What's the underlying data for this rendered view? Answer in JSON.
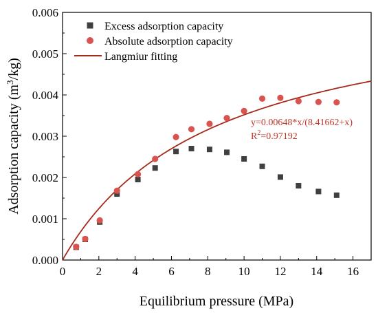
{
  "chart_data": {
    "type": "scatter",
    "xlabel": "Equilibrium pressure (MPa)",
    "ylabel_main": "Adsorption capacity (m",
    "ylabel_sup": "3",
    "ylabel_tail": "/kg)",
    "xlim": [
      0,
      17
    ],
    "ylim": [
      0,
      0.006
    ],
    "x_ticks": [
      0,
      2,
      4,
      6,
      8,
      10,
      12,
      14,
      16
    ],
    "y_ticks": [
      0.0,
      0.001,
      0.002,
      0.003,
      0.004,
      0.005,
      0.006
    ],
    "y_tick_labels": [
      "0.000",
      "0.001",
      "0.002",
      "0.003",
      "0.004",
      "0.005",
      "0.006"
    ],
    "x_tick_labels": [
      "0",
      "2",
      "4",
      "6",
      "8",
      "10",
      "12",
      "14",
      "16"
    ],
    "grid": false,
    "legend_position": "top-left",
    "series": [
      {
        "name": "Excess adsorption capacity",
        "marker": "square",
        "color": "#404040",
        "x": [
          0.75,
          1.25,
          2.05,
          3.0,
          4.15,
          5.1,
          6.25,
          7.1,
          8.1,
          9.05,
          10.0,
          11.0,
          12.0,
          13.0,
          14.1,
          15.1
        ],
        "y": [
          0.00031,
          0.0005,
          0.00092,
          0.0016,
          0.00195,
          0.00223,
          0.00263,
          0.0027,
          0.00268,
          0.00261,
          0.00245,
          0.00227,
          0.00201,
          0.0018,
          0.00166,
          0.00157
        ]
      },
      {
        "name": "Absolute adsorption capacity",
        "marker": "circle",
        "color": "#d9534f",
        "x": [
          0.75,
          1.25,
          2.05,
          3.0,
          4.15,
          5.1,
          6.25,
          7.1,
          8.1,
          9.05,
          10.0,
          11.0,
          12.0,
          13.0,
          14.1,
          15.1
        ],
        "y": [
          0.00032,
          0.00051,
          0.00096,
          0.00168,
          0.00208,
          0.00245,
          0.00298,
          0.00317,
          0.0033,
          0.00344,
          0.00361,
          0.00391,
          0.00393,
          0.00385,
          0.00383,
          0.00382
        ]
      },
      {
        "name": "Langmiur fitting",
        "marker": "line",
        "color": "#a52a1a",
        "model": {
          "a": 0.00648,
          "b": 8.41662,
          "x_range": [
            0,
            17
          ]
        }
      }
    ],
    "annotations": {
      "equation": "y=0.00648*x/(8.41662+x)",
      "r2_prefix": "R",
      "r2_sup": "2",
      "r2_value": "=0.97192"
    }
  }
}
